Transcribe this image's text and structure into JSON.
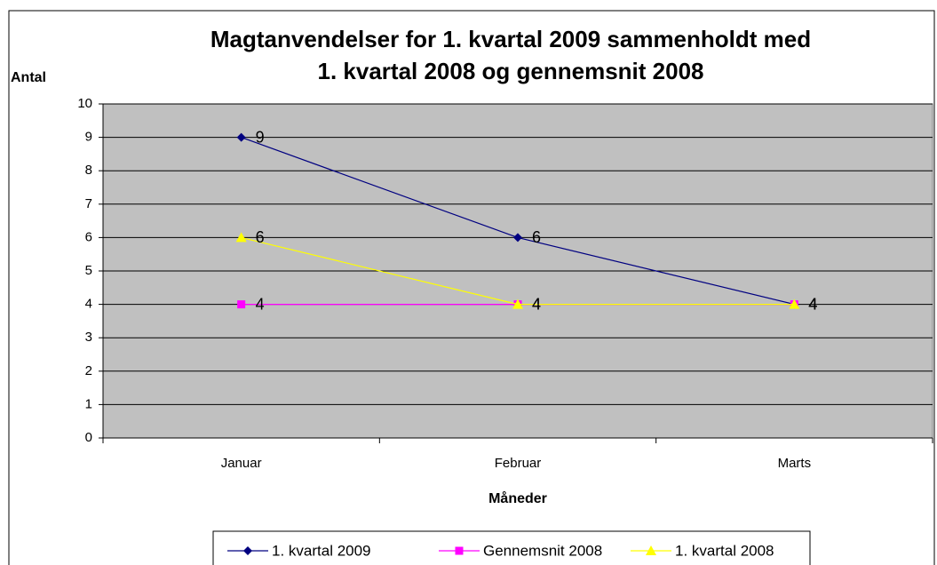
{
  "chart_data": {
    "type": "line",
    "title": [
      "Magtanvendelser for 1. kvartal 2009 sammenholdt med",
      "1. kvartal 2008 og gennemsnit 2008"
    ],
    "y_label": "Antal",
    "x_label": "Måneder",
    "categories": [
      "Januar",
      "Februar",
      "Marts"
    ],
    "series": [
      {
        "name": "1. kvartal 2009",
        "color": "#000080",
        "marker": "diamond",
        "values": [
          9,
          6,
          4
        ]
      },
      {
        "name": "Gennemsnit 2008",
        "color": "#ff00ff",
        "marker": "square",
        "values": [
          4,
          4,
          4
        ]
      },
      {
        "name": "1. kvartal 2008",
        "color": "#ffff00",
        "marker": "triangle",
        "values": [
          6,
          4,
          4
        ]
      }
    ],
    "ylim": [
      0,
      10
    ],
    "yticks": [
      0,
      1,
      2,
      3,
      4,
      5,
      6,
      7,
      8,
      9,
      10
    ],
    "grid": true,
    "plot_background": "#c0c0c0",
    "data_labels": true,
    "legend": "bottom"
  }
}
